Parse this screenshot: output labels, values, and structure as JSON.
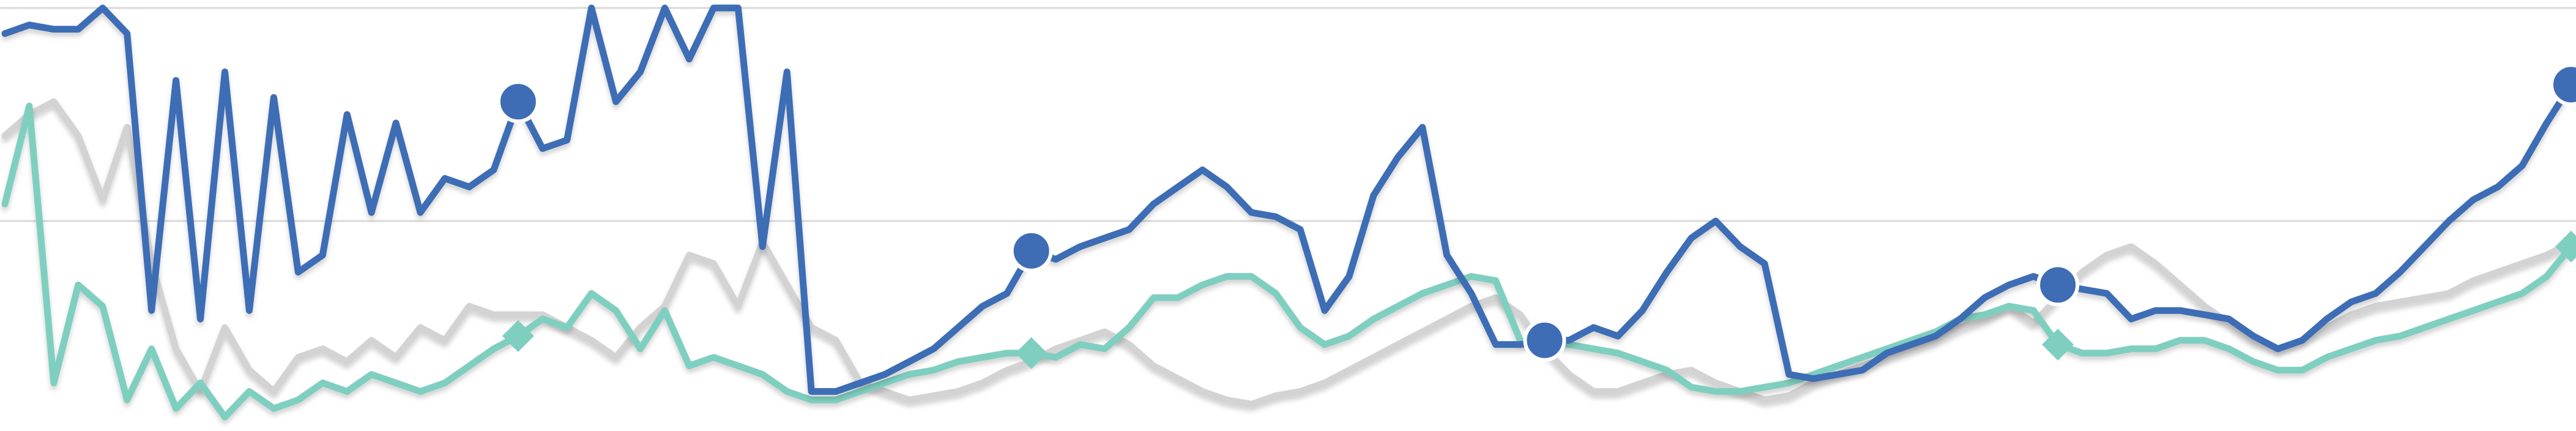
{
  "chart_data": {
    "type": "line",
    "ylim": [
      0,
      100
    ],
    "yticks": [
      50,
      100
    ],
    "grid": true,
    "series": [
      {
        "name": null,
        "color": "#d3d3d3",
        "markers": false,
        "values": [
          70,
          75,
          78,
          70,
          55,
          72,
          40,
          20,
          10,
          25,
          15,
          10,
          18,
          20,
          17,
          22,
          18,
          25,
          22,
          30,
          28,
          28,
          28,
          25,
          22,
          18,
          25,
          30,
          42,
          40,
          30,
          45,
          35,
          25,
          22,
          12,
          10,
          8,
          9,
          10,
          12,
          15,
          17,
          20,
          22,
          24,
          21,
          16,
          13,
          10,
          8,
          7,
          9,
          10,
          12,
          15,
          18,
          21,
          24,
          27,
          30,
          32,
          28,
          20,
          14,
          10,
          10,
          12,
          14,
          15,
          12,
          10,
          8,
          9,
          12,
          14,
          16,
          18,
          20,
          22,
          25,
          27,
          30,
          26,
          32,
          38,
          42,
          44,
          40,
          35,
          30,
          26,
          22,
          20,
          22,
          25,
          28,
          30,
          31,
          32,
          33,
          36,
          38,
          40,
          42,
          45
        ]
      },
      {
        "name": null,
        "color": "#7fcfc0",
        "markers": true,
        "marker": "diamond",
        "values": [
          54,
          77,
          12,
          35,
          30,
          8,
          20,
          6,
          12,
          4,
          10,
          6,
          8,
          12,
          10,
          14,
          12,
          10,
          12,
          16,
          20,
          23,
          27,
          25,
          33,
          29,
          20,
          29,
          16,
          18,
          16,
          14,
          10,
          8,
          8,
          10,
          12,
          14,
          15,
          17,
          18,
          19,
          19,
          18,
          21,
          20,
          25,
          32,
          32,
          35,
          37,
          37,
          33,
          25,
          21,
          23,
          27,
          30,
          33,
          35,
          37,
          36,
          22,
          21,
          21,
          20,
          19,
          17,
          15,
          11,
          10,
          10,
          11,
          12,
          14,
          16,
          18,
          20,
          22,
          24,
          27,
          28,
          30,
          29,
          21,
          19,
          19,
          20,
          20,
          22,
          22,
          20,
          17,
          15,
          15,
          18,
          20,
          22,
          23,
          25,
          27,
          29,
          31,
          33,
          37,
          44
        ]
      },
      {
        "name": null,
        "color": "#3e6db5",
        "markers": true,
        "marker": "circle",
        "values": [
          94,
          96,
          95,
          95,
          100,
          94,
          29,
          83,
          27,
          85,
          29,
          79,
          38,
          42,
          75,
          52,
          73,
          52,
          60,
          58,
          62,
          78,
          67,
          69,
          100,
          78,
          85,
          100,
          88,
          100,
          100,
          44,
          85,
          10,
          10,
          12,
          14,
          17,
          20,
          25,
          30,
          33,
          43,
          41,
          44,
          46,
          48,
          54,
          58,
          62,
          58,
          52,
          51,
          48,
          29,
          37,
          56,
          65,
          72,
          42,
          33,
          21,
          21,
          22,
          22,
          25,
          23,
          29,
          38,
          46,
          50,
          44,
          40,
          14,
          13,
          14,
          15,
          19,
          21,
          23,
          27,
          32,
          35,
          37,
          35,
          34,
          33,
          27,
          29,
          29,
          28,
          27,
          23,
          20,
          22,
          27,
          31,
          33,
          38,
          44,
          50,
          55,
          58,
          63,
          73,
          82
        ]
      }
    ]
  }
}
